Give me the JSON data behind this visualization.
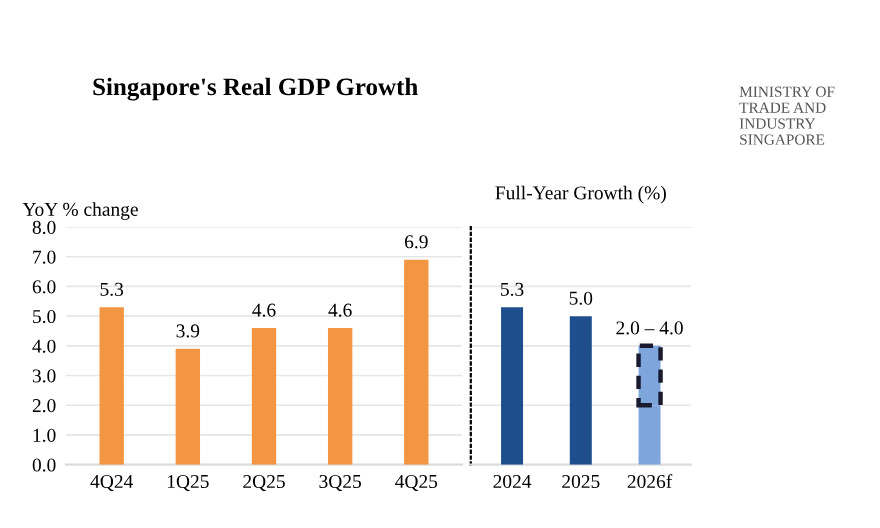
{
  "chart_data": [
    {
      "type": "bar",
      "title": "Singapore's Real GDP Growth",
      "ylabel": "YoY % change",
      "categories": [
        "4Q24",
        "1Q25",
        "2Q25",
        "3Q25",
        "4Q25"
      ],
      "values": [
        5.3,
        3.9,
        4.6,
        4.6,
        6.9
      ],
      "color": "#f39644",
      "data_labels": true,
      "ylim": [
        0,
        8
      ],
      "yticks": [
        {
          "value": 0,
          "label": "0.0"
        },
        {
          "value": 1,
          "label": "1.0"
        },
        {
          "value": 2,
          "label": "2.0"
        },
        {
          "value": 3,
          "label": "3.0"
        },
        {
          "value": 4,
          "label": "4.0"
        },
        {
          "value": 5,
          "label": "5.0"
        },
        {
          "value": 6,
          "label": "6.0"
        },
        {
          "value": 7,
          "label": "7.0"
        },
        {
          "value": 8,
          "label": "8.0"
        }
      ],
      "grid": "y",
      "annotations": [
        "MINISTRY OF TRADE AND INDUSTRY SINGAPORE"
      ]
    },
    {
      "type": "bar",
      "title": "Full-Year Growth (%)",
      "categories": [
        "2024",
        "2025",
        "2026f"
      ],
      "stacked": true,
      "series": [
        {
          "colors": [
            "#1f4e8c",
            "#1f4e8c",
            "#7ea6dc"
          ],
          "values": [
            5.3,
            5.0,
            2.0
          ]
        },
        {
          "color": "#7ea6dc",
          "line_style": "dashed",
          "values": [
            null,
            null,
            2.0
          ]
        }
      ],
      "totals": [
        "5.3",
        "5.0",
        "2.0 – 4.0"
      ],
      "ylim": [
        0,
        8
      ],
      "grid": "y",
      "tick_labels": "x"
    }
  ]
}
